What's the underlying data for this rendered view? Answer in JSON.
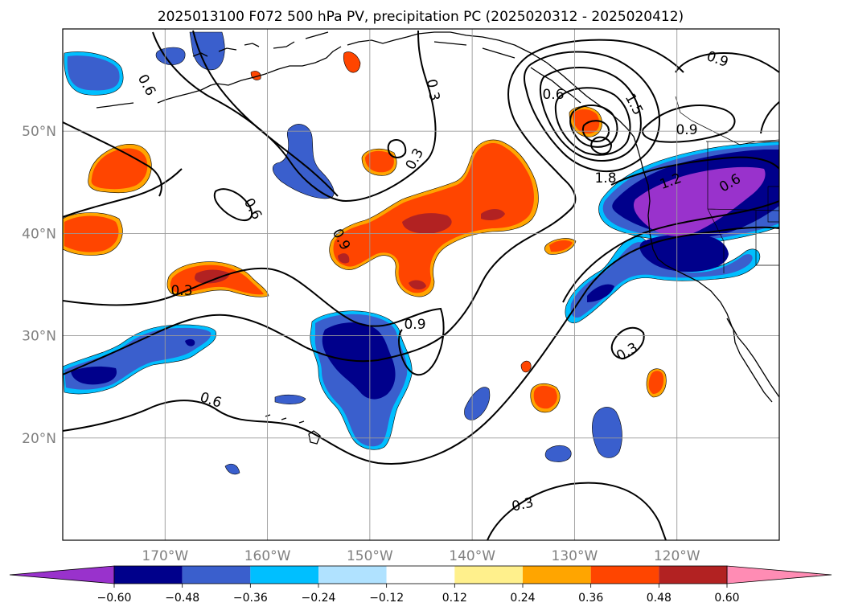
{
  "title": "2025013100 F072 500 hPa PV, precipitation PC (2025020312 - 2025020412)",
  "map": {
    "lon_range": [
      -180,
      -110
    ],
    "lat_range": [
      10,
      60
    ],
    "grid": true,
    "lat_ticks": [
      {
        "value": 20,
        "label": "20°N"
      },
      {
        "value": 30,
        "label": "30°N"
      },
      {
        "value": 40,
        "label": "40°N"
      },
      {
        "value": 50,
        "label": "50°N"
      }
    ],
    "lon_ticks": [
      {
        "value": -170,
        "label": "170°W"
      },
      {
        "value": -160,
        "label": "160°W"
      },
      {
        "value": -150,
        "label": "150°W"
      },
      {
        "value": -140,
        "label": "140°W"
      },
      {
        "value": -130,
        "label": "130°W"
      },
      {
        "value": -120,
        "label": "120°W"
      }
    ],
    "contour_labels": [
      "0.6",
      "0.3",
      "0.9",
      "1.5",
      "1.8",
      "0.9",
      "0.6",
      "0.9",
      "0.3",
      "0.3",
      "0.6",
      "0.3",
      "0.3",
      "0.9",
      "1.2",
      "0.6",
      "0.6"
    ]
  },
  "colorbar": {
    "tick_labels": [
      "−0.60",
      "−0.48",
      "−0.36",
      "−0.24",
      "−0.12",
      "0.12",
      "0.24",
      "0.36",
      "0.48",
      "0.60"
    ],
    "colors": [
      "#9932cc",
      "#00008b",
      "#3a5fcd",
      "#00bfff",
      "#b0e2ff",
      "#ffffff",
      "#fff08c",
      "#ffa500",
      "#ff4500",
      "#b22222",
      "#ff8cb4"
    ],
    "extend": "both"
  },
  "chart_data": {
    "type": "map",
    "variables": [
      "500 hPa PV (black contours)",
      "precipitation PC (filled shading)"
    ],
    "pv_contour_levels": [
      0.3,
      0.6,
      0.9,
      1.2,
      1.5,
      1.8
    ],
    "pc_levels": [
      -0.6,
      -0.48,
      -0.36,
      -0.24,
      -0.12,
      0.12,
      0.24,
      0.36,
      0.48,
      0.6
    ],
    "lon_range": [
      -180,
      -110
    ],
    "lat_range": [
      10,
      60
    ]
  }
}
